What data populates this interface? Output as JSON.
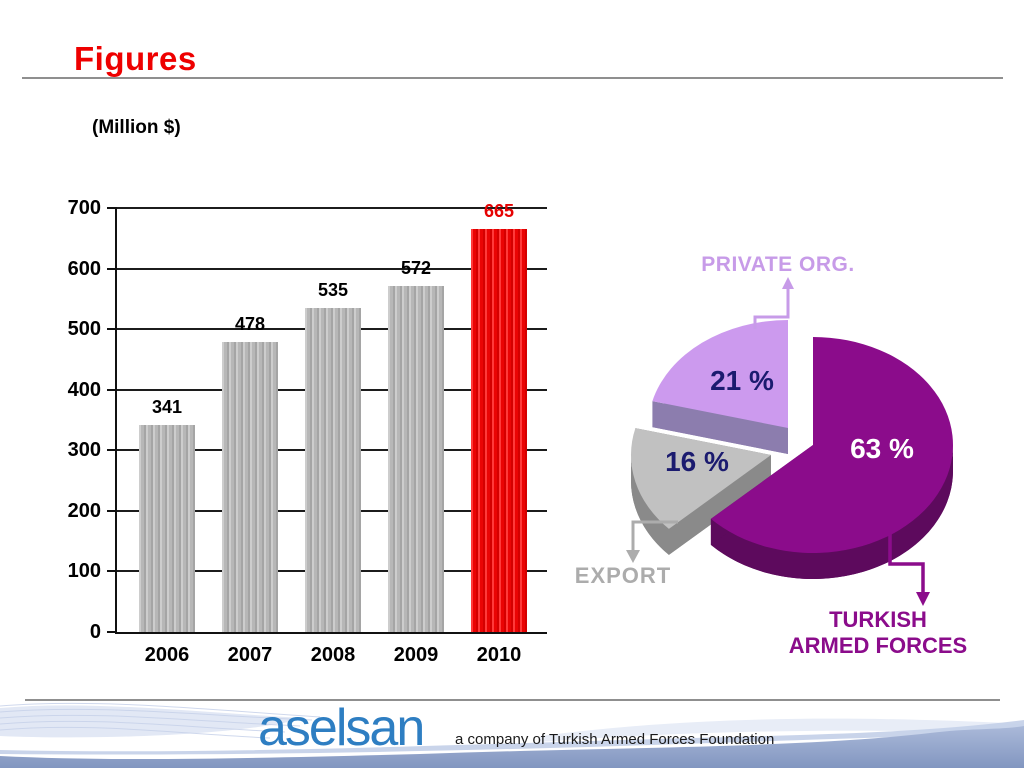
{
  "page": {
    "title": "Figures"
  },
  "chart_data": [
    {
      "type": "bar",
      "title": "(Million $)",
      "categories": [
        "2006",
        "2007",
        "2008",
        "2009",
        "2010"
      ],
      "values": [
        341,
        478,
        535,
        572,
        665
      ],
      "highlight_index": 4,
      "xlabel": "",
      "ylabel": "",
      "ylim": [
        0,
        700
      ],
      "ytick_step": 100,
      "grid": true,
      "legend": "none",
      "colors": {
        "bar_stripes": [
          "#CDCDCD",
          "#B7B7B7",
          "#A5A5A5"
        ],
        "highlight_stripes": [
          "#FF3A3A",
          "#EA0404",
          "#D40000"
        ],
        "value_label": "#000000",
        "highlight_value_label": "#E60202",
        "axis": "#111111"
      }
    },
    {
      "type": "pie",
      "unit": "%",
      "start_angle_deg": 0,
      "direction": "clockwise",
      "slices": [
        {
          "name": "turkish-armed-forces",
          "value": 63,
          "pct_text": "63 %",
          "pct_text_color": "#FFFFFF",
          "color": "#8B0C8B",
          "side_color": "#5D0A5D"
        },
        {
          "name": "export",
          "value": 16,
          "pct_text": "16 %",
          "pct_text_color": "#1B1B6F",
          "color": "#C1C1C1",
          "side_color": "#8A8A8A"
        },
        {
          "name": "private-org",
          "value": 21,
          "pct_text": "21 %",
          "pct_text_color": "#1B1B6F",
          "color": "#CC9AEE",
          "side_color": "#8C7DAE"
        }
      ],
      "callouts": [
        {
          "name": "private-org",
          "text": "PRIVATE ORG.",
          "color": "#C79BE8"
        },
        {
          "name": "export",
          "text": "EXPORT",
          "color": "#ACACAC"
        },
        {
          "name": "turkish-armed-forces",
          "lines": [
            "TURKISH",
            "ARMED FORCES"
          ],
          "color": "#8B0C8B"
        }
      ]
    }
  ],
  "footer": {
    "logo_text": "aselsan",
    "logo_color": "#2E7EC2",
    "tagline": "a company of Turkish Armed Forces Foundation"
  }
}
